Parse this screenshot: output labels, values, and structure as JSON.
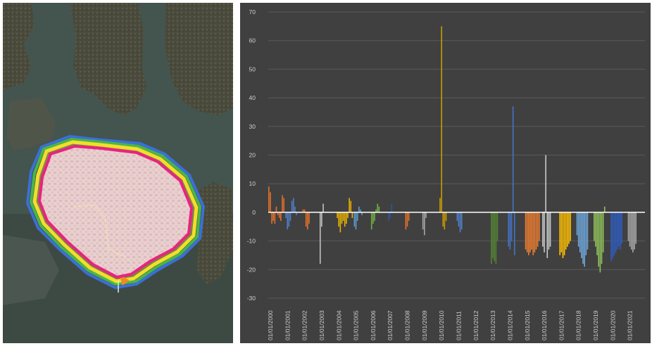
{
  "map": {
    "alt": "satellite"
  },
  "chart_data": {
    "type": "bar",
    "ylim": [
      -30,
      70
    ],
    "y_ticks": [
      70,
      60,
      50,
      40,
      30,
      20,
      10,
      0,
      -10,
      -20,
      -30
    ],
    "x_tick_labels": [
      "01/01/2000",
      "01/01/2001",
      "01/01/2002",
      "01/01/2003",
      "01/01/2004",
      "01/01/2005",
      "01/01/2006",
      "01/01/2007",
      "01/01/2008",
      "01/01/2009",
      "01/01/2010",
      "01/01/2011",
      "01/01/2012",
      "01/01/2013",
      "01/01/2014",
      "01/01/2015",
      "01/01/2016",
      "01/01/2017",
      "01/01/2018",
      "01/01/2019",
      "01/01/2020",
      "01/01/2021"
    ],
    "grid": true,
    "background": "#404040",
    "gridline_color": "#5a5a5a",
    "zero_line_color": "#ffffff",
    "series": [
      {
        "year": "2000",
        "color": "#e0702a",
        "values": [
          9,
          7,
          -4,
          -3,
          -4,
          2,
          -1,
          -2,
          -3,
          6,
          5
        ]
      },
      {
        "year": "2001",
        "color": "#4f7fc6",
        "values": [
          -2,
          -6,
          -5,
          -3,
          4,
          5,
          2,
          -1
        ]
      },
      {
        "year": "2002",
        "color": "#e0702a",
        "values": [
          1,
          1,
          -5,
          -6,
          -4
        ]
      },
      {
        "year": "2003",
        "color": "#c0c0c0",
        "values": [
          -18,
          -5,
          3
        ]
      },
      {
        "year": "2004",
        "color": "#e8b000",
        "values": [
          -2,
          -5,
          -7,
          -4,
          -3,
          -5,
          -4,
          -2,
          5,
          4,
          -2
        ]
      },
      {
        "year": "2005",
        "color": "#5b9bd5",
        "values": [
          -5,
          -6,
          -3,
          2,
          1,
          -1
        ]
      },
      {
        "year": "2006",
        "color": "#70ad47",
        "values": [
          -6,
          -4,
          -3,
          1,
          3,
          2
        ]
      },
      {
        "year": "2007",
        "color": "#2f5597",
        "values": [
          -3,
          -2,
          3
        ]
      },
      {
        "year": "2008",
        "color": "#e0702a",
        "values": [
          -6,
          -5,
          -3
        ]
      },
      {
        "year": "2009",
        "color": "#a5a5a5",
        "values": [
          -6,
          -8,
          -2
        ]
      },
      {
        "year": "2010",
        "color": "#c99a00",
        "values": [
          5,
          65,
          -5,
          -6,
          -3
        ]
      },
      {
        "year": "2011",
        "color": "#4f7fc6",
        "values": [
          -3,
          -5,
          -7,
          -6
        ]
      },
      {
        "year": "2013",
        "color": "#548235",
        "values": [
          -18,
          -16,
          -17,
          -18,
          -10
        ]
      },
      {
        "year": "2014",
        "color": "#4472c4",
        "values": [
          -12,
          -13,
          -10,
          37,
          -15
        ]
      },
      {
        "year": "2015",
        "color": "#ed7d31",
        "values": [
          -13,
          -14,
          -15,
          -14,
          -13,
          -15,
          -14,
          -13,
          -12,
          -10
        ]
      },
      {
        "year": "2016",
        "color": "#c8c8c8",
        "values": [
          -12,
          -14,
          20,
          -16,
          -13,
          -12
        ]
      },
      {
        "year": "2017",
        "color": "#ffc000",
        "values": [
          -15,
          -14,
          -16,
          -15,
          -13,
          -12,
          -11,
          -10
        ]
      },
      {
        "year": "2018",
        "color": "#6fa8dc",
        "values": [
          -8,
          -12,
          -14,
          -16,
          -18,
          -19,
          -15,
          -13
        ]
      },
      {
        "year": "2019",
        "color": "#8fc15a",
        "values": [
          -10,
          -12,
          -15,
          -19,
          -21,
          -18,
          -14,
          2
        ]
      },
      {
        "year": "2020",
        "color": "#2f5cc0",
        "values": [
          -17,
          -16,
          -15,
          -14,
          -13,
          -12,
          -13,
          -11
        ]
      },
      {
        "year": "2021",
        "color": "#a8a8a8",
        "values": [
          -10,
          -12,
          -13,
          -14,
          -13,
          -11
        ]
      }
    ]
  }
}
